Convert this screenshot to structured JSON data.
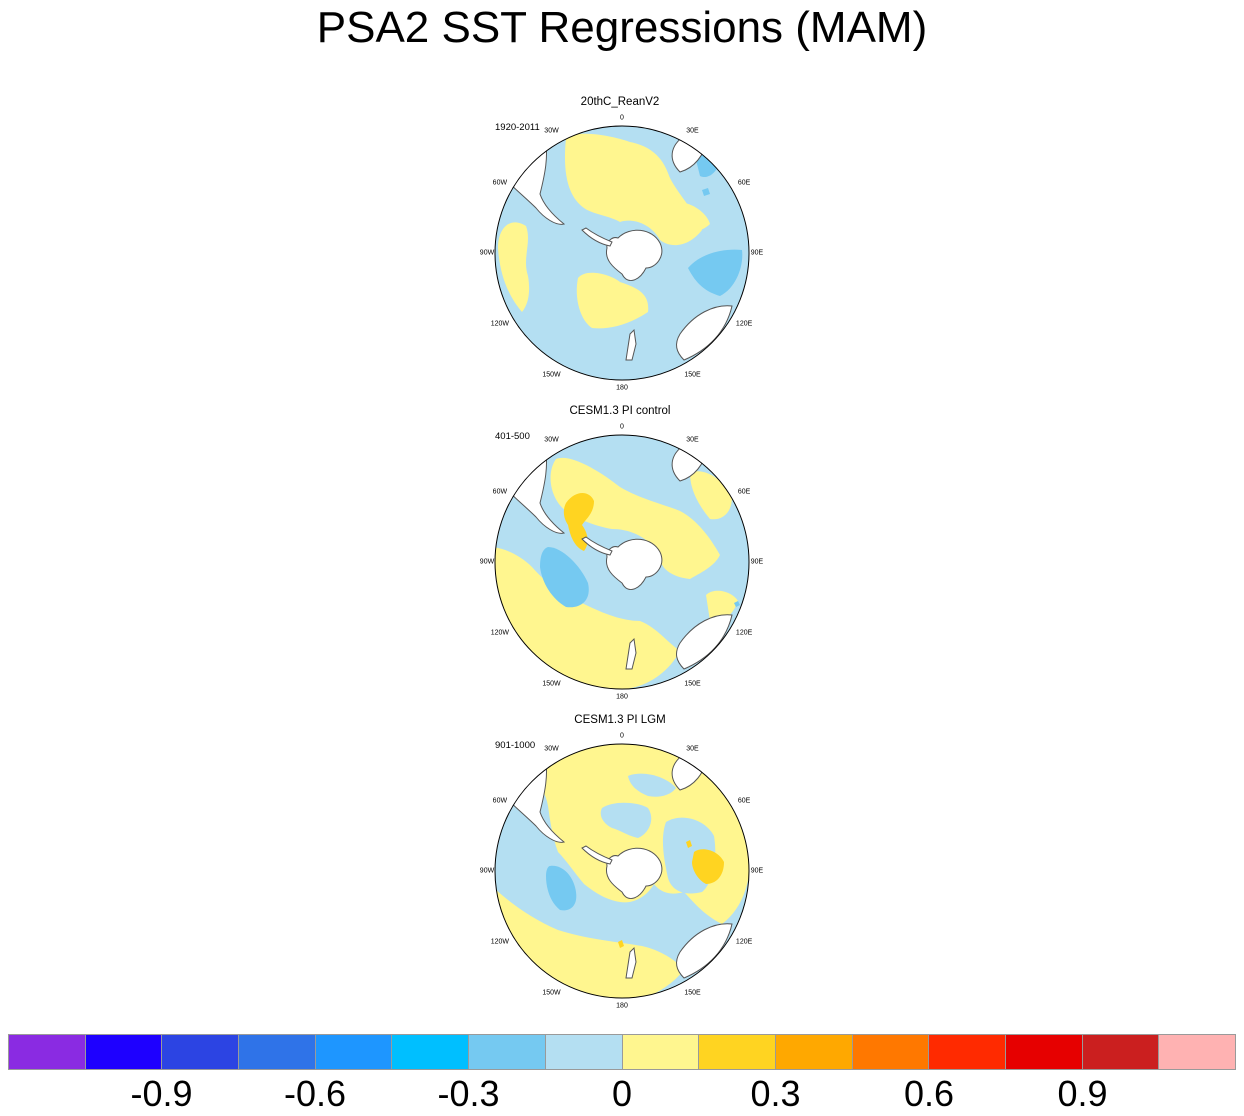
{
  "title": "PSA2 SST Regressions (MAM)",
  "panels": [
    {
      "name": "20thC_ReanV2",
      "period": "1920-2011",
      "pattern": "rean"
    },
    {
      "name": "CESM1.3 PI control",
      "period": "401-500",
      "pattern": "control"
    },
    {
      "name": "CESM1.3 PI LGM",
      "period": "901-1000",
      "pattern": "lgm"
    }
  ],
  "longitude_labels": [
    "0",
    "30E",
    "60E",
    "90E",
    "120E",
    "150E",
    "180",
    "150W",
    "120W",
    "90W",
    "60W",
    "30W"
  ],
  "colorbar": {
    "colors": [
      "#8a2be2",
      "#1e00ff",
      "#2c44e3",
      "#2f73e8",
      "#1e96ff",
      "#00bfff",
      "#75c9f1",
      "#b4dff2",
      "#fff68f",
      "#ffd421",
      "#ffa800",
      "#ff7800",
      "#ff2a00",
      "#e60000",
      "#cb1f1f",
      "#ffb2b2"
    ],
    "tick_labels": [
      "-0.9",
      "-0.6",
      "-0.3",
      "0",
      "0.3",
      "0.6",
      "0.9"
    ]
  },
  "colors": {
    "ocean_light_blue": "#b4dff2",
    "blue_mid": "#75c9f1",
    "yellow_light": "#fff68f",
    "yellow_gold": "#ffd421",
    "land": "#ffffff"
  }
}
